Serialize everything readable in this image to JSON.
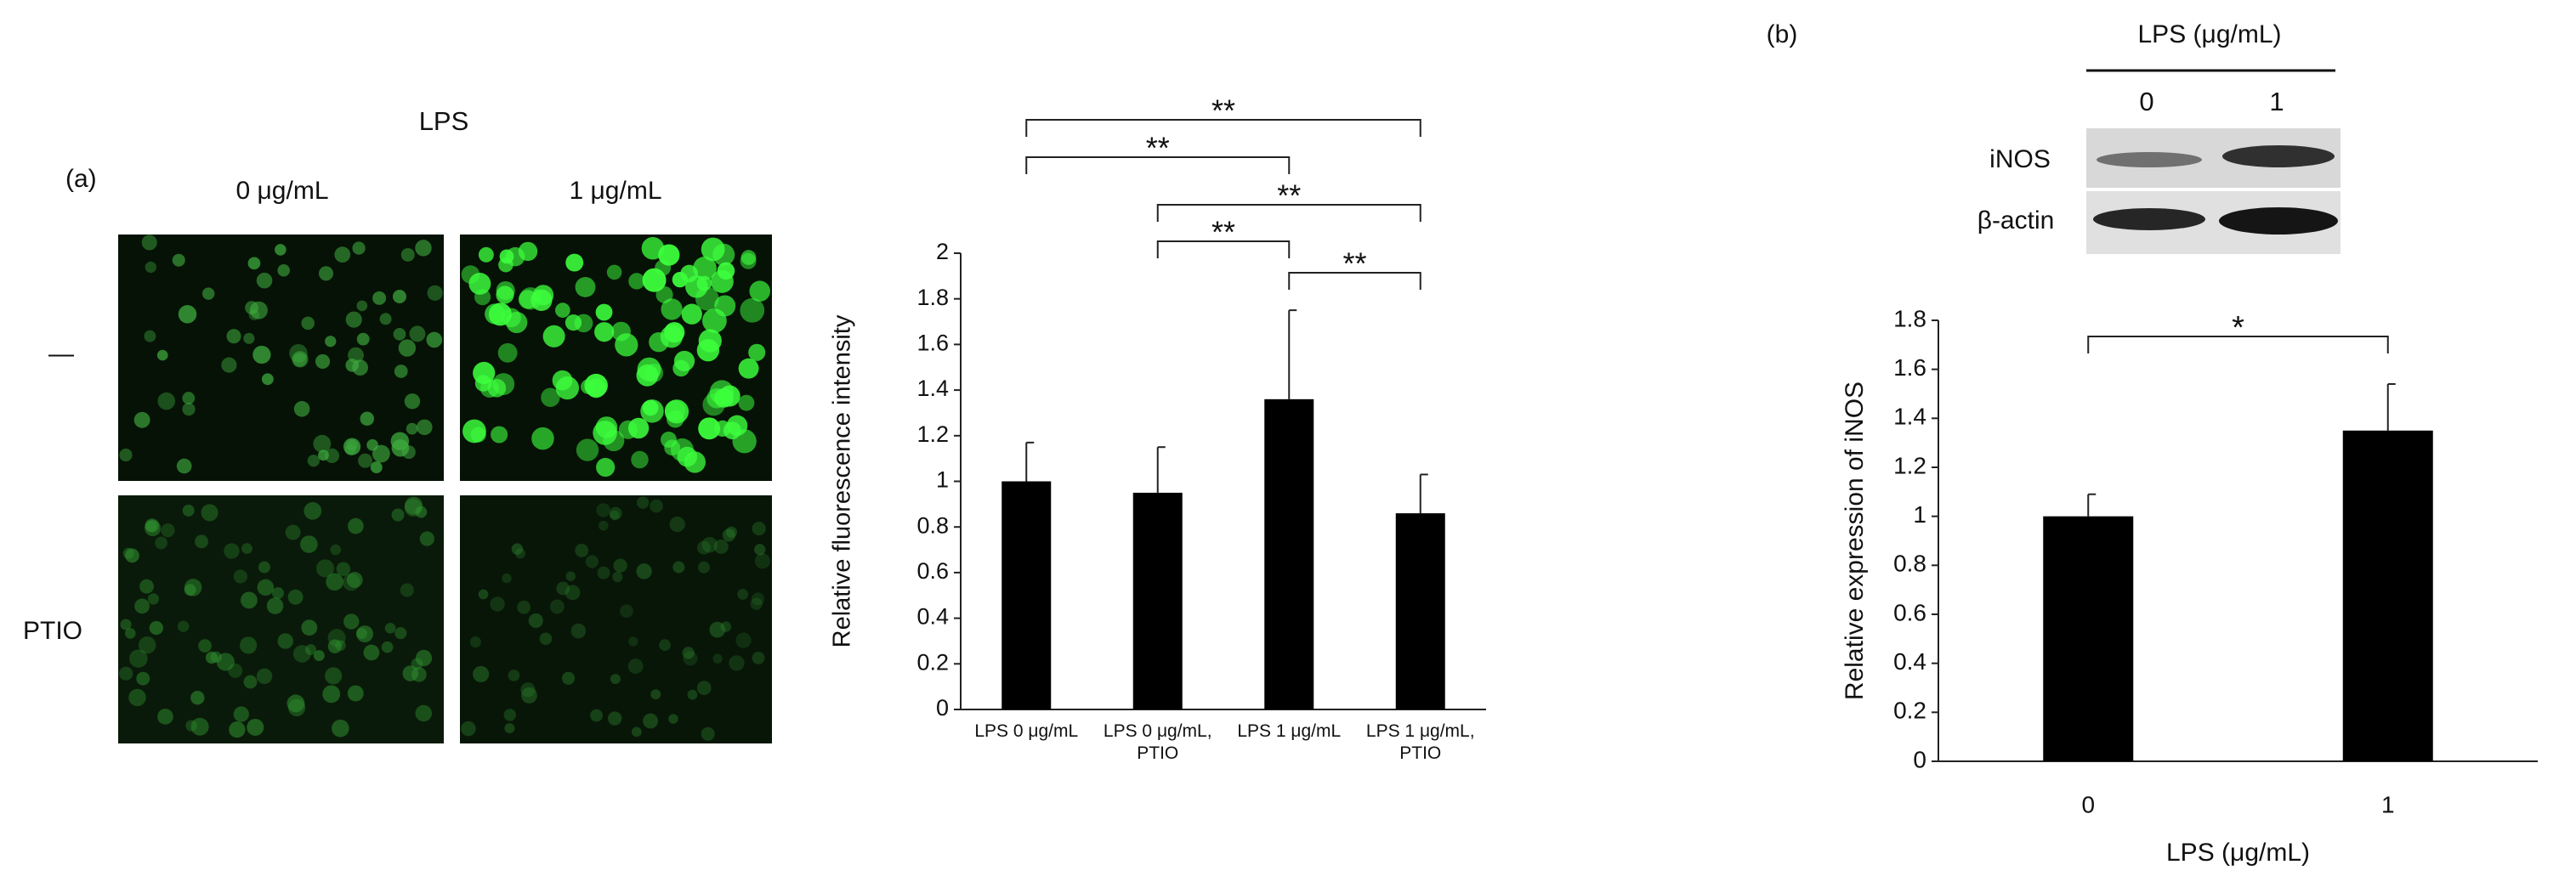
{
  "figure": {
    "panel_a": "(a)",
    "panel_b": "(b)",
    "lps": "LPS",
    "dose_0": "0 μg/mL",
    "dose_1": "1 μg/mL",
    "row_control": "—",
    "row_ptio": "PTIO",
    "blot_title": "LPS (μg/mL)",
    "blot_lanes": [
      "0",
      "1"
    ],
    "blot_rows": [
      "iNOS",
      "β-actin"
    ]
  },
  "chart_data": [
    {
      "type": "bar",
      "ylabel": "Relative fluorescence intensity",
      "categories": [
        "LPS 0 μg/mL",
        "LPS 0 μg/mL, PTIO",
        "LPS 1 μg/mL",
        "LPS 1 μg/mL, PTIO"
      ],
      "values": [
        1.0,
        0.95,
        1.36,
        0.86
      ],
      "errors": [
        0.17,
        0.2,
        0.39,
        0.17
      ],
      "color": "#000000",
      "ylim": [
        0,
        2
      ],
      "yticks": [
        0,
        0.2,
        0.4,
        0.6,
        0.8,
        1,
        1.2,
        1.4,
        1.6,
        1.8,
        2
      ],
      "significance": [
        {
          "groups": [
            0,
            3
          ],
          "label": "**"
        },
        {
          "groups": [
            0,
            2
          ],
          "label": "**"
        },
        {
          "groups": [
            1,
            3
          ],
          "label": "**"
        },
        {
          "groups": [
            1,
            2
          ],
          "label": "**"
        },
        {
          "groups": [
            2,
            3
          ],
          "label": "**"
        }
      ]
    },
    {
      "type": "bar",
      "ylabel": "Relative expression of iNOS",
      "xlabel": "LPS (μg/mL)",
      "categories": [
        "0",
        "1"
      ],
      "values": [
        1.0,
        1.35
      ],
      "errors": [
        0.09,
        0.19
      ],
      "color": "#000000",
      "ylim": [
        0,
        1.8
      ],
      "yticks": [
        0,
        0.2,
        0.4,
        0.6,
        0.8,
        1,
        1.2,
        1.4,
        1.6,
        1.8
      ],
      "significance": [
        {
          "groups": [
            0,
            1
          ],
          "label": "*"
        }
      ]
    }
  ]
}
